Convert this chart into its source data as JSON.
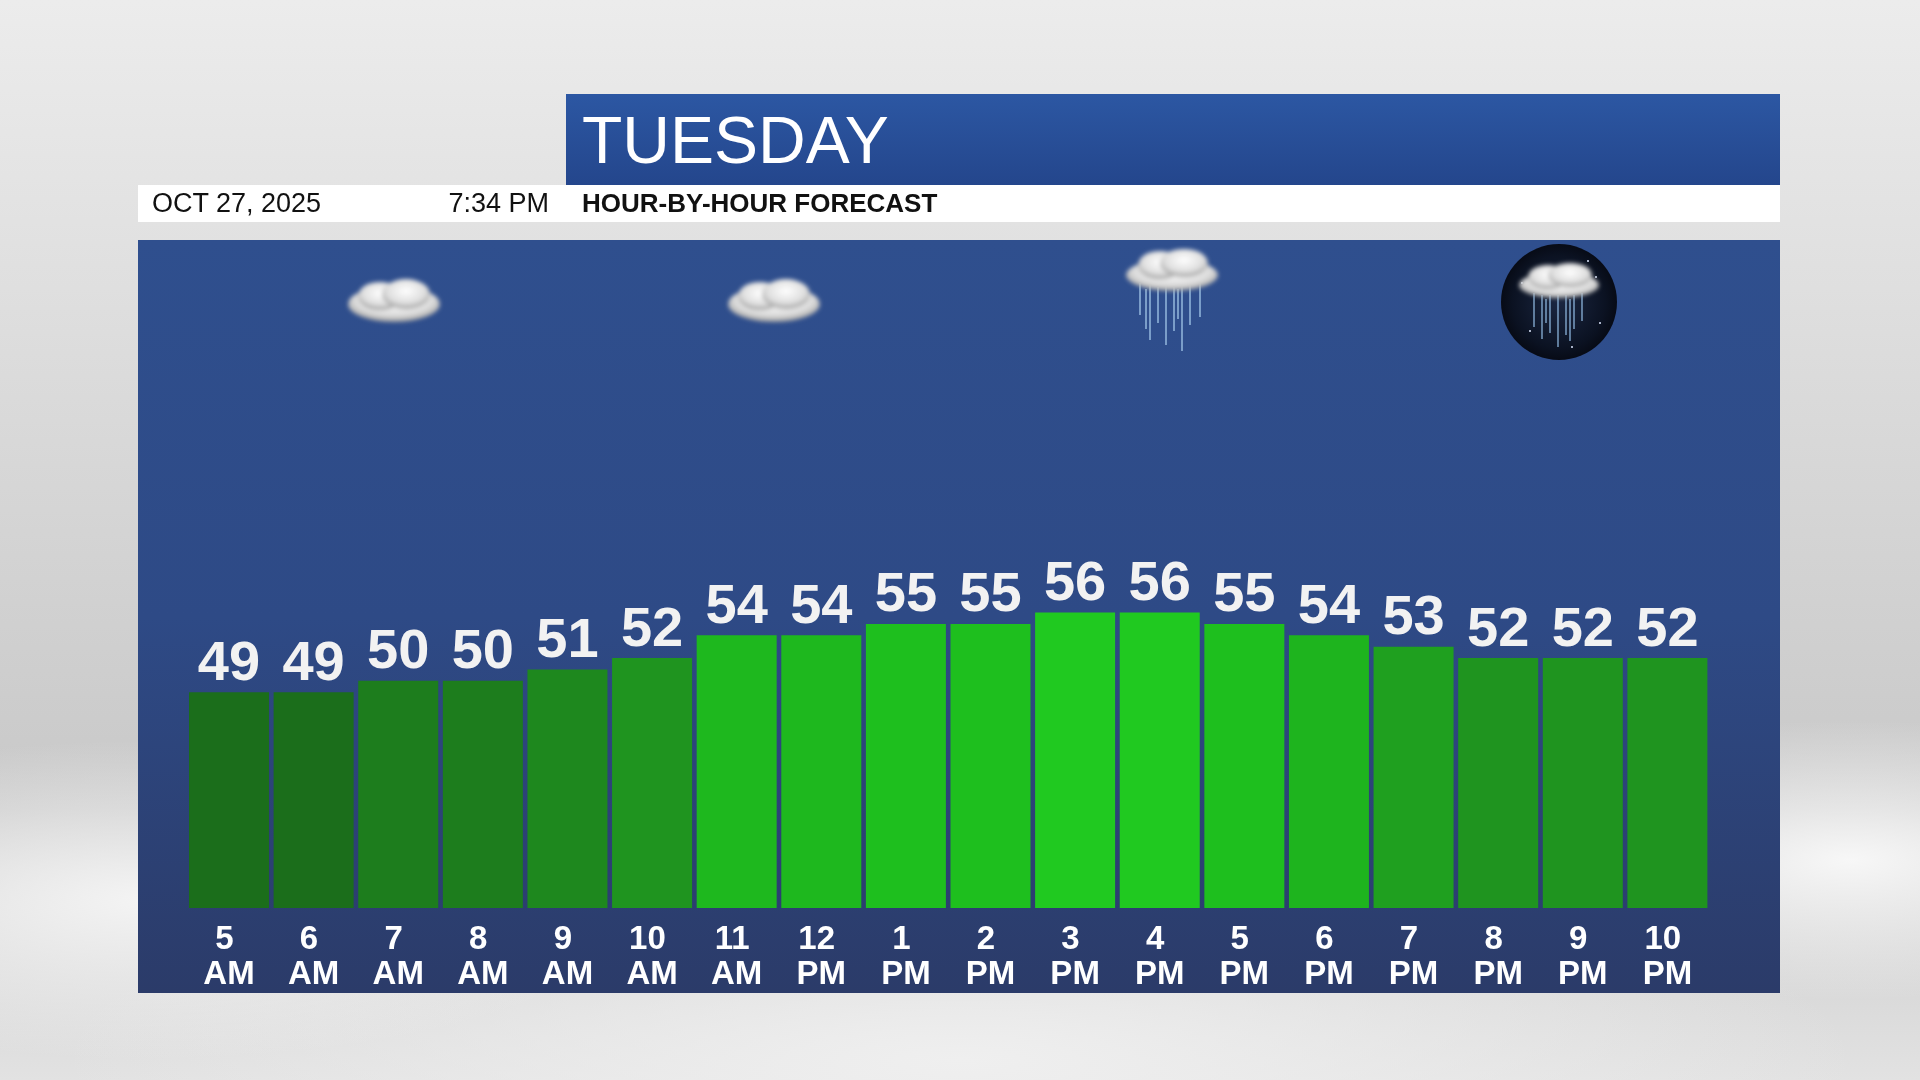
{
  "chart_data": {
    "type": "bar",
    "title": "TUESDAY",
    "subtitle": "HOUR-BY-HOUR FORECAST",
    "annotations": [
      "OCT 27, 2025",
      "7:34 PM"
    ],
    "categories": [
      "5 AM",
      "6 AM",
      "7 AM",
      "8 AM",
      "9 AM",
      "10 AM",
      "11 AM",
      "12 PM",
      "1 PM",
      "2 PM",
      "3 PM",
      "4 PM",
      "5 PM",
      "6 PM",
      "7 PM",
      "8 PM",
      "9 PM",
      "10 PM"
    ],
    "values": [
      49,
      49,
      50,
      50,
      51,
      52,
      54,
      54,
      55,
      55,
      56,
      56,
      55,
      54,
      53,
      52,
      52,
      52
    ],
    "colors": [
      "#1b6e1b",
      "#1b6e1b",
      "#1d7d1d",
      "#1d7d1d",
      "#1e881e",
      "#1f941f",
      "#1eb81e",
      "#1eb81e",
      "#1ebf1e",
      "#1ebf1e",
      "#20c920",
      "#20c920",
      "#1ebf1e",
      "#1eb41e",
      "#1fa01f",
      "#1f941f",
      "#1f941f",
      "#1f941f"
    ],
    "ylim": [
      30,
      56
    ],
    "tick_labels": "x",
    "data_labels": true
  }
}
